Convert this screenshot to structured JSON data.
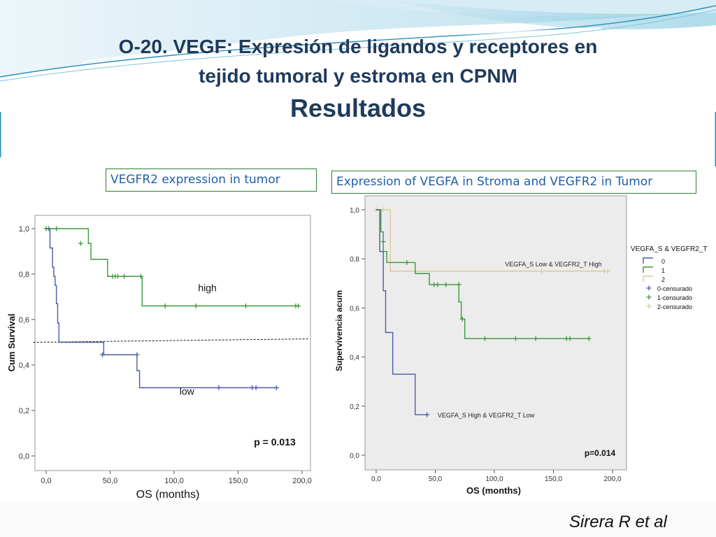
{
  "slide": {
    "title_line1": "O-20. VEGF: Expresión de ligandos y receptores en",
    "title_line2": "tejido tumoral y estroma en CPNM",
    "title_line3": "Resultados",
    "credit": "Sirera R et al"
  },
  "chart_data": [
    {
      "type": "line",
      "step": true,
      "title": "VEGFR2 expression in tumor",
      "xlabel": "OS (months)",
      "ylabel": "Cum Survival",
      "xlim": [
        0,
        200
      ],
      "ylim": [
        0,
        1
      ],
      "xticks": [
        0,
        50,
        100,
        150,
        200
      ],
      "xtick_labels": [
        "0,0",
        "50,0",
        "100,0",
        "150,0",
        "200,0"
      ],
      "yticks": [
        0,
        0.2,
        0.4,
        0.6,
        0.8,
        1.0
      ],
      "ytick_labels": [
        "0,0",
        "0,2",
        "0,4",
        "0,6",
        "0,8",
        "1,0"
      ],
      "grid": false,
      "pvalue": "p = 0.013",
      "reference_line": {
        "y0": 0.5,
        "y1": 0.515,
        "x0": -10,
        "x1": 205
      },
      "series": [
        {
          "name": "high",
          "color": "#3a9a3a",
          "steps": [
            [
              0,
              1.0
            ],
            [
              33,
              0.935
            ],
            [
              35,
              0.865
            ],
            [
              48,
              0.79
            ],
            [
              75,
              0.66
            ],
            [
              196,
              0.66
            ]
          ],
          "censored": [
            [
              0,
              1.0
            ],
            [
              2,
              1.0
            ],
            [
              8,
              1.0
            ],
            [
              27,
              0.935
            ],
            [
              52,
              0.79
            ],
            [
              54,
              0.79
            ],
            [
              56,
              0.79
            ],
            [
              61,
              0.79
            ],
            [
              74,
              0.79
            ],
            [
              93,
              0.66
            ],
            [
              117,
              0.66
            ],
            [
              156,
              0.66
            ],
            [
              195,
              0.66
            ],
            [
              197,
              0.66
            ]
          ],
          "label_at": [
            126,
            0.725
          ]
        },
        {
          "name": "low",
          "color": "#4a5aa8",
          "steps": [
            [
              0,
              1.0
            ],
            [
              3,
              0.915
            ],
            [
              5,
              0.83
            ],
            [
              6,
              0.79
            ],
            [
              7,
              0.75
            ],
            [
              8,
              0.67
            ],
            [
              9,
              0.585
            ],
            [
              10,
              0.5
            ],
            [
              45,
              0.445
            ],
            [
              71,
              0.375
            ],
            [
              73,
              0.3
            ],
            [
              180,
              0.3
            ]
          ],
          "censored": [
            [
              44,
              0.445
            ],
            [
              71,
              0.445
            ],
            [
              135,
              0.3
            ],
            [
              161,
              0.3
            ],
            [
              164,
              0.3
            ],
            [
              180,
              0.3
            ]
          ],
          "label_at": [
            110,
            0.27
          ]
        }
      ]
    },
    {
      "type": "line",
      "step": true,
      "title": "Expression of VEGFA in Stroma and VEGFR2 in Tumor",
      "xlabel": "OS (months)",
      "ylabel": "Supervivencia acum",
      "xlim": [
        0,
        200
      ],
      "ylim": [
        0,
        1
      ],
      "xticks": [
        0,
        50,
        100,
        150,
        200
      ],
      "xtick_labels": [
        "0,0",
        "50,0",
        "100,0",
        "150,0",
        "200,0"
      ],
      "yticks": [
        0,
        0.2,
        0.4,
        0.6,
        0.8,
        1.0
      ],
      "ytick_labels": [
        "0,0",
        "0,2",
        "0,4",
        "0,6",
        "0,8",
        "1,0"
      ],
      "grid": false,
      "pvalue": "p=0.014",
      "legend_title": "VEGFA_S & VEGFR2_T",
      "legend_position": "right",
      "series": [
        {
          "name": "0",
          "color": "#4a5aa8",
          "steps": [
            [
              0,
              1.0
            ],
            [
              3,
              0.83
            ],
            [
              6,
              0.67
            ],
            [
              8,
              0.5
            ],
            [
              14,
              0.33
            ],
            [
              33,
              0.165
            ],
            [
              43,
              0.165
            ]
          ],
          "censored": [
            [
              43,
              0.165
            ]
          ]
        },
        {
          "name": "1",
          "color": "#3a9a3a",
          "steps": [
            [
              0,
              1.0
            ],
            [
              4,
              0.91
            ],
            [
              6,
              0.83
            ],
            [
              9,
              0.785
            ],
            [
              33,
              0.74
            ],
            [
              45,
              0.695
            ],
            [
              70,
              0.625
            ],
            [
              72,
              0.555
            ],
            [
              75,
              0.475
            ],
            [
              180,
              0.475
            ]
          ],
          "censored": [
            [
              6,
              0.87
            ],
            [
              26,
              0.785
            ],
            [
              49,
              0.695
            ],
            [
              52,
              0.695
            ],
            [
              59,
              0.695
            ],
            [
              70,
              0.695
            ],
            [
              73,
              0.555
            ],
            [
              92,
              0.475
            ],
            [
              118,
              0.475
            ],
            [
              135,
              0.475
            ],
            [
              161,
              0.475
            ],
            [
              164,
              0.475
            ],
            [
              180,
              0.475
            ]
          ]
        },
        {
          "name": "2",
          "color": "#d9c99a",
          "steps": [
            [
              0,
              1.0
            ],
            [
              12,
              0.75
            ],
            [
              195,
              0.75
            ]
          ],
          "censored": [
            [
              0,
              1.0
            ],
            [
              6,
              1.0
            ],
            [
              140,
              0.75
            ],
            [
              193,
              0.75
            ],
            [
              196,
              0.75
            ]
          ]
        }
      ],
      "censor_legend": [
        "0-censurado",
        "1-censurado",
        "2-censurado"
      ],
      "annotations": [
        {
          "text": "VEGFA_S Low & VEGFR2_T High",
          "x": 109,
          "y": 0.78
        },
        {
          "text": "VEGFA_S High & VEGFR2_T Low",
          "x": 52,
          "y": 0.165
        }
      ]
    }
  ]
}
